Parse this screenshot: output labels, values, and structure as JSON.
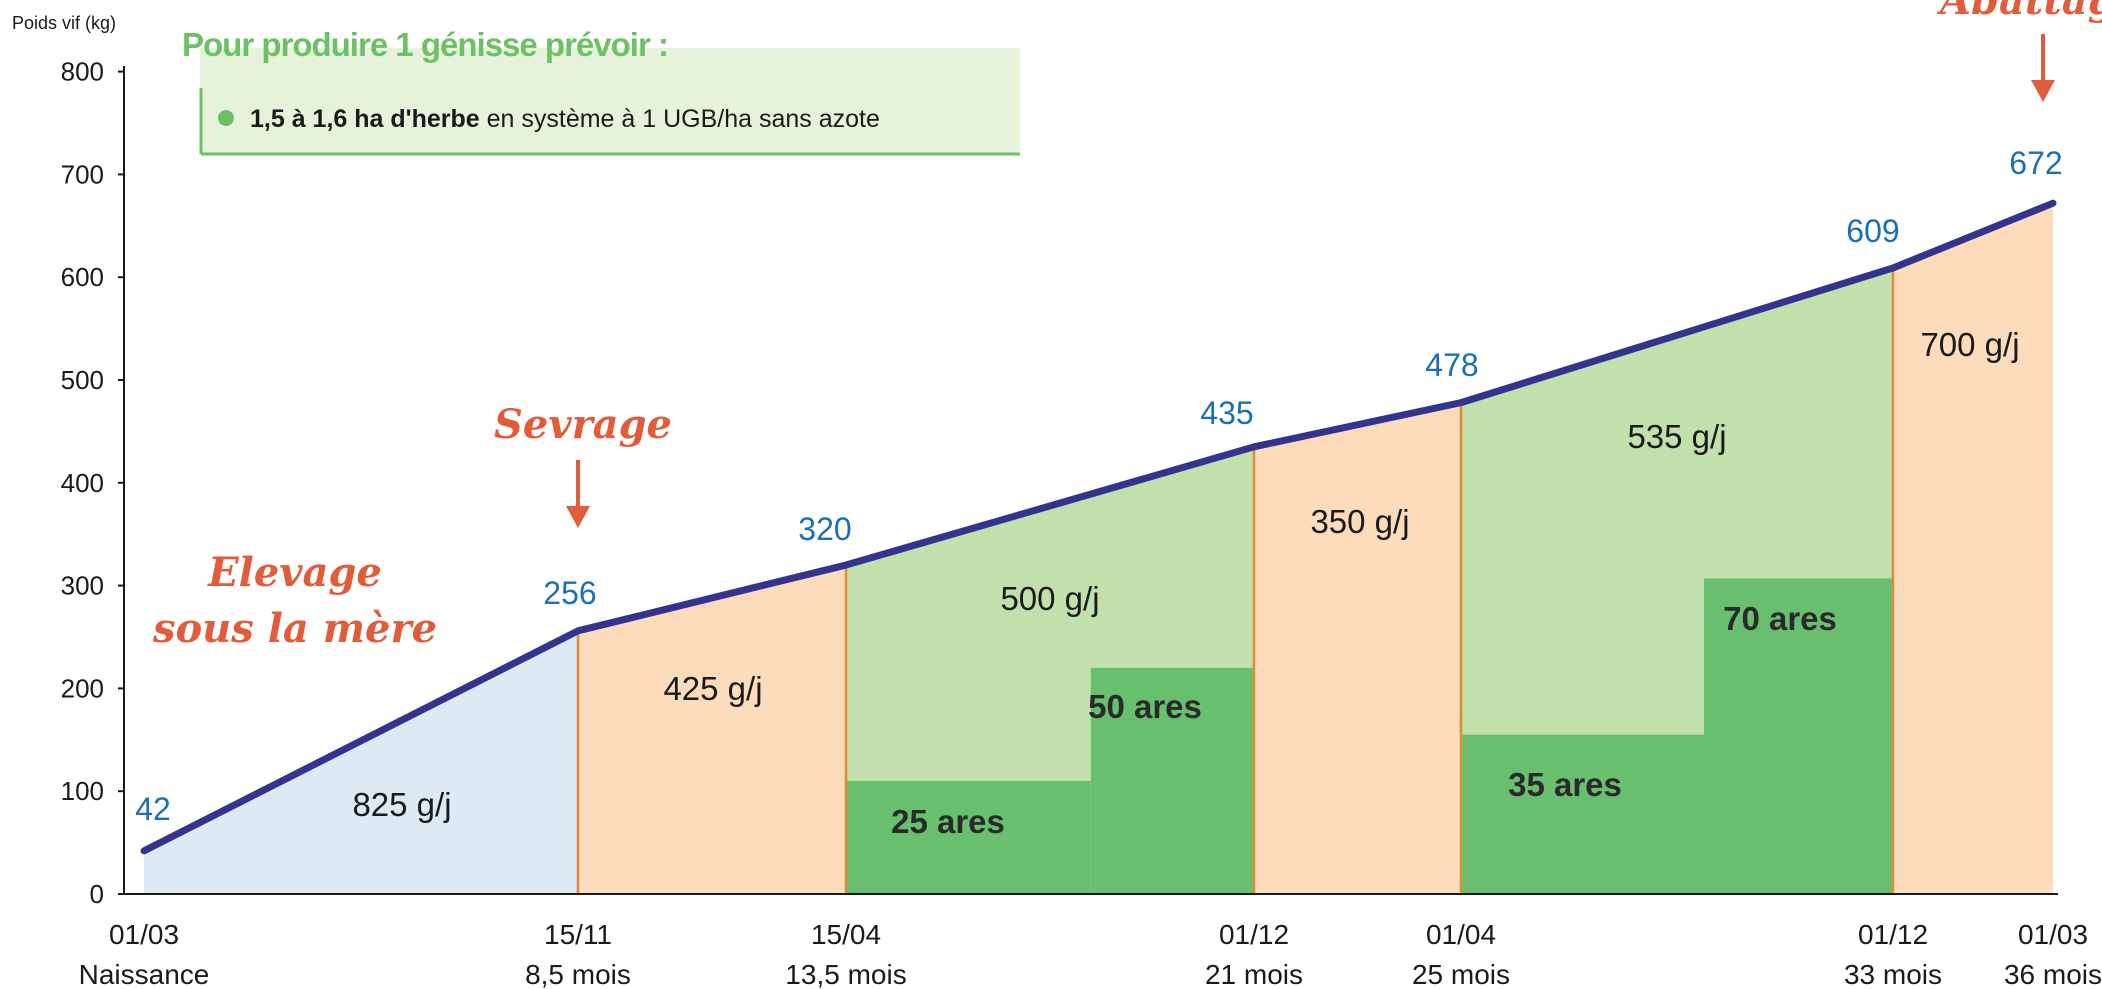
{
  "chart_data": {
    "type": "area",
    "ylabel": "Poids vif (kg)",
    "ylim": [
      0,
      800
    ],
    "yticks": [
      0,
      100,
      200,
      300,
      400,
      500,
      600,
      700,
      800
    ],
    "x_months": [
      0,
      8.5,
      13.5,
      21,
      25,
      33,
      36
    ],
    "x_dates": [
      "01/03",
      "15/11",
      "15/04",
      "01/12",
      "01/04",
      "01/12",
      "01/03"
    ],
    "x_desc": [
      "Naissance",
      "8,5 mois",
      "13,5 mois",
      "21 mois",
      "25 mois",
      "33 mois",
      "36 mois"
    ],
    "weights": [
      42,
      256,
      320,
      435,
      478,
      609,
      672
    ],
    "weight_labels": [
      "42",
      "256",
      "320",
      "435",
      "478",
      "609",
      "672"
    ],
    "gains": [
      {
        "label": "825 g/j",
        "period": "stable",
        "color": "#dde9f3"
      },
      {
        "label": "425 g/j",
        "period": "stable",
        "color": "#fcdcbb"
      },
      {
        "label": "500 g/j",
        "period": "grass",
        "color": "#c1e0ab"
      },
      {
        "label": "350 g/j",
        "period": "stable",
        "color": "#fcdcbb"
      },
      {
        "label": "535 g/j",
        "period": "grass",
        "color": "#c1e0ab"
      },
      {
        "label": "700 g/j",
        "period": "stable",
        "color": "#fcdcbb"
      }
    ],
    "grass_areas": [
      {
        "label": "25 ares",
        "x_start": 13.5,
        "x_end": 18.0,
        "level": 110
      },
      {
        "label": "50 ares",
        "x_start": 18.0,
        "x_end": 21,
        "level": 220
      },
      {
        "label": "35 ares",
        "x_start": 25,
        "x_end": 29.5,
        "level": 155
      },
      {
        "label": "70 ares",
        "x_start": 29.5,
        "x_end": 33,
        "level": 307
      }
    ],
    "grass_area_color": "#68c06f",
    "line_color": "#33348e",
    "annotations": {
      "elevage_line1": "Elevage",
      "elevage_line2": "sous la mère",
      "sevrage": "Sevrage",
      "abattage": "Abattage"
    },
    "grid": false,
    "legend": "none"
  },
  "infobox": {
    "title": "Pour produire 1 génisse prévoir :",
    "item_bold": "1,5 à 1,6 ha d'herbe",
    "item_rest": " en système à 1 UGB/ha sans azote"
  },
  "colors": {
    "title_green": "#6cc065",
    "box_bg": "#e7f2da",
    "box_border": "#6cc065",
    "annotation_orange": "#e05c3a",
    "value_blue": "#1b6fb5",
    "divider_orange": "#e08a3a"
  }
}
